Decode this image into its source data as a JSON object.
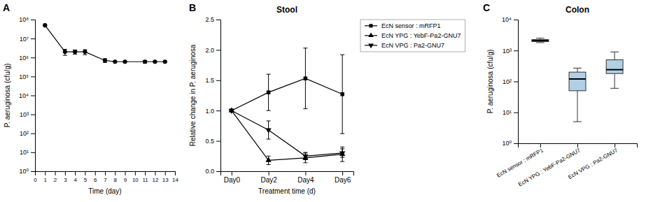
{
  "chart_data": [
    {
      "type": "line",
      "xlabel": "Time (day)",
      "ylabel": "P. aeruginosa (cfu/g)",
      "annotations": [
        "A"
      ],
      "x": [
        1,
        3,
        4,
        5,
        7,
        8,
        9,
        11,
        12,
        13
      ],
      "series": [
        {
          "values": [
            50000000,
            2000000,
            2000000,
            2000000,
            700000,
            600000,
            600000,
            600000,
            600000,
            600000
          ],
          "errors": [
            0,
            700000,
            500000,
            600000,
            150000,
            0,
            0,
            100000,
            0,
            0
          ],
          "color": "#000000",
          "marker": "circle"
        }
      ],
      "log": "y",
      "xlim": [
        0,
        14
      ],
      "xticks": [
        0,
        1,
        2,
        3,
        4,
        5,
        6,
        7,
        8,
        9,
        10,
        11,
        12,
        13,
        14
      ],
      "ylim": [
        1,
        100000000
      ],
      "yticks": [
        {
          "value": 1,
          "label": "10⁰"
        },
        {
          "value": 10,
          "label": "10¹"
        },
        {
          "value": 100,
          "label": "10²"
        },
        {
          "value": 1000,
          "label": "10³"
        },
        {
          "value": 10000,
          "label": "10⁴"
        },
        {
          "value": 100000,
          "label": "10⁵"
        },
        {
          "value": 1000000,
          "label": "10⁶"
        },
        {
          "value": 10000000,
          "label": "10⁷"
        },
        {
          "value": 100000000,
          "label": "10⁸"
        }
      ]
    },
    {
      "type": "line",
      "title": "Stool",
      "xlabel": "Treatment time (d)",
      "ylabel": "Relative change in P. aeruginosa",
      "annotations": [
        "B"
      ],
      "categories": [
        "Day0",
        "Day2",
        "Day4",
        "Day6"
      ],
      "series": [
        {
          "name": "EcN sensor : mRFP1",
          "values": [
            1.0,
            1.3,
            1.53,
            1.27
          ],
          "errors": [
            0,
            0.3,
            0.5,
            0.65
          ],
          "color": "#000000",
          "marker": "square"
        },
        {
          "name": "EcN YPG : YebF-Pa2-GNU7",
          "values": [
            1.0,
            0.18,
            0.22,
            0.28
          ],
          "errors": [
            0,
            0.07,
            0.08,
            0.12
          ],
          "color": "#000000",
          "marker": "triangle-up"
        },
        {
          "name": "EcN VPG : Pa2-GNU7",
          "values": [
            1.0,
            0.68,
            0.25,
            0.3
          ],
          "errors": [
            0,
            0.15,
            0.06,
            0.07
          ],
          "color": "#000000",
          "marker": "triangle-down"
        }
      ],
      "ylim": [
        0.0,
        2.5
      ],
      "yticks": [
        {
          "value": 0.0,
          "label": "0.0"
        },
        0.5,
        {
          "value": 1.0,
          "label": "1.0"
        },
        1.5,
        {
          "value": 2.0,
          "label": "2.0"
        },
        2.5
      ],
      "legend": "upper right"
    },
    {
      "type": "box",
      "title": "Colon",
      "ylabel": "P. aeruginosa (cfu/g)",
      "annotations": [
        "C"
      ],
      "categories": [
        "EcN sensor : mRFP1",
        "EcN YPG : YebF-Pa2-GNU7",
        "EcN VPG : Pa2-GNU7"
      ],
      "boxes": [
        {
          "low": 1800,
          "q1": 1950,
          "median": 2100,
          "q3": 2250,
          "high": 2500
        },
        {
          "low": 5,
          "q1": 50,
          "median": 120,
          "q3": 200,
          "high": 270
        },
        {
          "low": 60,
          "q1": 180,
          "median": 240,
          "q3": 500,
          "high": 900
        }
      ],
      "log": "y",
      "ylim": [
        1,
        10000
      ],
      "yticks": [
        {
          "value": 1,
          "label": "10⁰"
        },
        {
          "value": 10,
          "label": "10¹"
        },
        {
          "value": 100,
          "label": "10²"
        },
        {
          "value": 1000,
          "label": "10³"
        },
        {
          "value": 10000,
          "label": "10⁴"
        }
      ]
    }
  ]
}
